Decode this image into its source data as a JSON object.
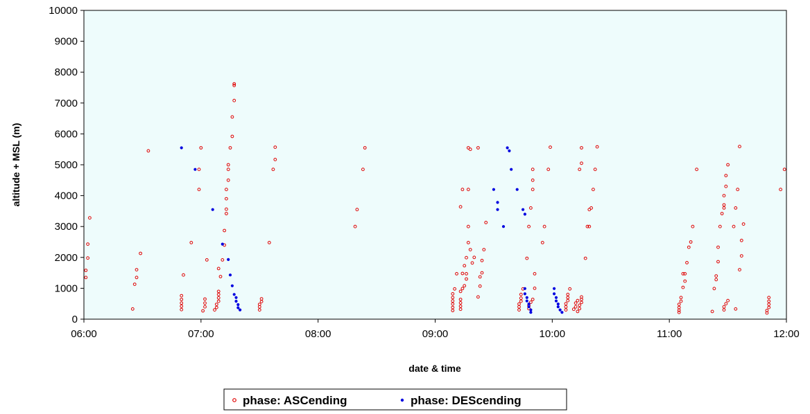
{
  "chart_data": {
    "type": "scatter",
    "title": "",
    "xlabel": "date & time",
    "ylabel": "altitude + MSL (m)",
    "xlim": [
      "06:00",
      "12:00"
    ],
    "ylim": [
      0,
      10000
    ],
    "x_ticks": [
      "06:00",
      "07:00",
      "08:00",
      "09:00",
      "10:00",
      "11:00",
      "12:00"
    ],
    "y_ticks": [
      "0",
      "1000",
      "2000",
      "3000",
      "4000",
      "5000",
      "6000",
      "7000",
      "8000",
      "9000",
      "10000"
    ],
    "grid": false,
    "legend_position": "bottom",
    "plot_background": "#eefcfc",
    "series": [
      {
        "name": "phase: ASCending",
        "color": "#e00000",
        "marker": "open-circle",
        "points": [
          [
            "06:01",
            1350
          ],
          [
            "06:01",
            1580
          ],
          [
            "06:02",
            1980
          ],
          [
            "06:02",
            2430
          ],
          [
            "06:03",
            3280
          ],
          [
            "06:25",
            330
          ],
          [
            "06:26",
            1130
          ],
          [
            "06:27",
            1350
          ],
          [
            "06:27",
            1600
          ],
          [
            "06:29",
            2130
          ],
          [
            "06:33",
            5450
          ],
          [
            "06:50",
            310
          ],
          [
            "06:50",
            420
          ],
          [
            "06:50",
            520
          ],
          [
            "06:50",
            640
          ],
          [
            "06:50",
            760
          ],
          [
            "06:51",
            1430
          ],
          [
            "06:55",
            2480
          ],
          [
            "06:59",
            4850
          ],
          [
            "06:59",
            4200
          ],
          [
            "07:00",
            5550
          ],
          [
            "07:01",
            270
          ],
          [
            "07:02",
            400
          ],
          [
            "07:02",
            520
          ],
          [
            "07:02",
            650
          ],
          [
            "07:03",
            1920
          ],
          [
            "07:07",
            300
          ],
          [
            "07:08",
            380
          ],
          [
            "07:08",
            480
          ],
          [
            "07:09",
            580
          ],
          [
            "07:09",
            690
          ],
          [
            "07:09",
            800
          ],
          [
            "07:09",
            900
          ],
          [
            "07:09",
            1640
          ],
          [
            "07:10",
            1380
          ],
          [
            "07:11",
            1920
          ],
          [
            "07:12",
            2400
          ],
          [
            "07:12",
            2870
          ],
          [
            "07:13",
            3420
          ],
          [
            "07:13",
            3560
          ],
          [
            "07:13",
            3900
          ],
          [
            "07:13",
            4200
          ],
          [
            "07:14",
            4500
          ],
          [
            "07:14",
            4850
          ],
          [
            "07:14",
            5000
          ],
          [
            "07:15",
            5550
          ],
          [
            "07:16",
            5920
          ],
          [
            "07:16",
            6550
          ],
          [
            "07:17",
            7080
          ],
          [
            "07:17",
            7570
          ],
          [
            "07:17",
            7620
          ],
          [
            "07:30",
            300
          ],
          [
            "07:30",
            400
          ],
          [
            "07:30",
            480
          ],
          [
            "07:31",
            570
          ],
          [
            "07:31",
            660
          ],
          [
            "07:35",
            2480
          ],
          [
            "07:37",
            4850
          ],
          [
            "07:38",
            5170
          ],
          [
            "07:38",
            5570
          ],
          [
            "08:19",
            3000
          ],
          [
            "08:20",
            3550
          ],
          [
            "08:23",
            4850
          ],
          [
            "08:24",
            5550
          ],
          [
            "09:09",
            280
          ],
          [
            "09:09",
            380
          ],
          [
            "09:09",
            490
          ],
          [
            "09:09",
            590
          ],
          [
            "09:09",
            700
          ],
          [
            "09:09",
            820
          ],
          [
            "09:10",
            980
          ],
          [
            "09:11",
            1470
          ],
          [
            "09:13",
            320
          ],
          [
            "09:13",
            420
          ],
          [
            "09:13",
            530
          ],
          [
            "09:13",
            640
          ],
          [
            "09:13",
            900
          ],
          [
            "09:14",
            990
          ],
          [
            "09:14",
            1480
          ],
          [
            "09:13",
            3640
          ],
          [
            "09:14",
            4200
          ],
          [
            "09:15",
            1080
          ],
          [
            "09:15",
            1730
          ],
          [
            "09:16",
            1300
          ],
          [
            "09:16",
            1470
          ],
          [
            "09:16",
            1990
          ],
          [
            "09:17",
            2480
          ],
          [
            "09:17",
            3000
          ],
          [
            "09:17",
            5550
          ],
          [
            "09:17",
            4200
          ],
          [
            "09:18",
            5500
          ],
          [
            "09:18",
            2250
          ],
          [
            "09:19",
            1820
          ],
          [
            "09:20",
            2000
          ],
          [
            "09:22",
            5550
          ],
          [
            "09:22",
            720
          ],
          [
            "09:23",
            1070
          ],
          [
            "09:23",
            1370
          ],
          [
            "09:24",
            1500
          ],
          [
            "09:24",
            1900
          ],
          [
            "09:25",
            2250
          ],
          [
            "09:26",
            3130
          ],
          [
            "09:43",
            300
          ],
          [
            "09:43",
            400
          ],
          [
            "09:43",
            490
          ],
          [
            "09:44",
            580
          ],
          [
            "09:44",
            680
          ],
          [
            "09:44",
            800
          ],
          [
            "09:45",
            980
          ],
          [
            "09:47",
            1970
          ],
          [
            "09:48",
            3000
          ],
          [
            "09:49",
            3600
          ],
          [
            "09:50",
            4200
          ],
          [
            "09:50",
            4500
          ],
          [
            "09:50",
            4850
          ],
          [
            "09:51",
            1470
          ],
          [
            "09:48",
            340
          ],
          [
            "09:48",
            440
          ],
          [
            "09:49",
            550
          ],
          [
            "09:50",
            640
          ],
          [
            "09:51",
            1000
          ],
          [
            "09:55",
            2480
          ],
          [
            "09:56",
            3000
          ],
          [
            "09:58",
            4850
          ],
          [
            "09:59",
            5570
          ],
          [
            "10:07",
            300
          ],
          [
            "10:07",
            400
          ],
          [
            "10:07",
            500
          ],
          [
            "10:08",
            600
          ],
          [
            "10:08",
            700
          ],
          [
            "10:08",
            800
          ],
          [
            "10:09",
            980
          ],
          [
            "10:11",
            320
          ],
          [
            "10:12",
            400
          ],
          [
            "10:12",
            520
          ],
          [
            "10:13",
            600
          ],
          [
            "10:13",
            250
          ],
          [
            "10:14",
            340
          ],
          [
            "10:14",
            450
          ],
          [
            "10:15",
            540
          ],
          [
            "10:15",
            640
          ],
          [
            "10:15",
            720
          ],
          [
            "10:14",
            4850
          ],
          [
            "10:15",
            5550
          ],
          [
            "10:15",
            5050
          ],
          [
            "10:17",
            1970
          ],
          [
            "10:18",
            3000
          ],
          [
            "10:19",
            3000
          ],
          [
            "10:19",
            3550
          ],
          [
            "10:20",
            3600
          ],
          [
            "10:21",
            4200
          ],
          [
            "10:22",
            4850
          ],
          [
            "10:23",
            5580
          ],
          [
            "11:05",
            220
          ],
          [
            "11:05",
            290
          ],
          [
            "11:05",
            380
          ],
          [
            "11:05",
            480
          ],
          [
            "11:06",
            580
          ],
          [
            "11:06",
            700
          ],
          [
            "11:07",
            1470
          ],
          [
            "11:07",
            1030
          ],
          [
            "11:08",
            1230
          ],
          [
            "11:08",
            1470
          ],
          [
            "11:09",
            1830
          ],
          [
            "11:10",
            2330
          ],
          [
            "11:11",
            2500
          ],
          [
            "11:12",
            3000
          ],
          [
            "11:14",
            4850
          ],
          [
            "11:22",
            250
          ],
          [
            "11:23",
            990
          ],
          [
            "11:24",
            1280
          ],
          [
            "11:24",
            1400
          ],
          [
            "11:25",
            1860
          ],
          [
            "11:25",
            2330
          ],
          [
            "11:26",
            3000
          ],
          [
            "11:27",
            3420
          ],
          [
            "11:28",
            3600
          ],
          [
            "11:28",
            3700
          ],
          [
            "11:28",
            4000
          ],
          [
            "11:29",
            4300
          ],
          [
            "11:29",
            4650
          ],
          [
            "11:30",
            5000
          ],
          [
            "11:28",
            300
          ],
          [
            "11:28",
            400
          ],
          [
            "11:29",
            500
          ],
          [
            "11:30",
            600
          ],
          [
            "11:33",
            3000
          ],
          [
            "11:34",
            3600
          ],
          [
            "11:34",
            330
          ],
          [
            "11:35",
            4200
          ],
          [
            "11:36",
            5590
          ],
          [
            "11:36",
            1600
          ],
          [
            "11:37",
            2550
          ],
          [
            "11:37",
            2050
          ],
          [
            "11:38",
            3080
          ],
          [
            "11:50",
            200
          ],
          [
            "11:50",
            280
          ],
          [
            "11:51",
            380
          ],
          [
            "11:51",
            480
          ],
          [
            "11:51",
            580
          ],
          [
            "11:51",
            700
          ],
          [
            "11:57",
            4200
          ],
          [
            "11:59",
            4850
          ]
        ]
      },
      {
        "name": "phase: DEScending",
        "color": "#0000e0",
        "marker": "filled-dot",
        "points": [
          [
            "06:50",
            5550
          ],
          [
            "06:57",
            4850
          ],
          [
            "07:06",
            3550
          ],
          [
            "07:11",
            2430
          ],
          [
            "07:14",
            1930
          ],
          [
            "07:15",
            1430
          ],
          [
            "07:16",
            1080
          ],
          [
            "07:17",
            800
          ],
          [
            "07:18",
            700
          ],
          [
            "07:18",
            580
          ],
          [
            "07:19",
            470
          ],
          [
            "07:19",
            370
          ],
          [
            "07:20",
            300
          ],
          [
            "09:30",
            4200
          ],
          [
            "09:32",
            3780
          ],
          [
            "09:32",
            3550
          ],
          [
            "09:35",
            3000
          ],
          [
            "09:37",
            5550
          ],
          [
            "09:38",
            5450
          ],
          [
            "09:39",
            4850
          ],
          [
            "09:42",
            4200
          ],
          [
            "09:45",
            3550
          ],
          [
            "09:46",
            3400
          ],
          [
            "09:46",
            990
          ],
          [
            "09:46",
            820
          ],
          [
            "09:47",
            700
          ],
          [
            "09:47",
            590
          ],
          [
            "09:48",
            490
          ],
          [
            "09:48",
            400
          ],
          [
            "09:49",
            300
          ],
          [
            "09:49",
            220
          ],
          [
            "10:01",
            990
          ],
          [
            "10:01",
            820
          ],
          [
            "10:02",
            700
          ],
          [
            "10:02",
            590
          ],
          [
            "10:03",
            490
          ],
          [
            "10:03",
            400
          ],
          [
            "10:04",
            300
          ],
          [
            "10:05",
            220
          ]
        ]
      }
    ]
  }
}
